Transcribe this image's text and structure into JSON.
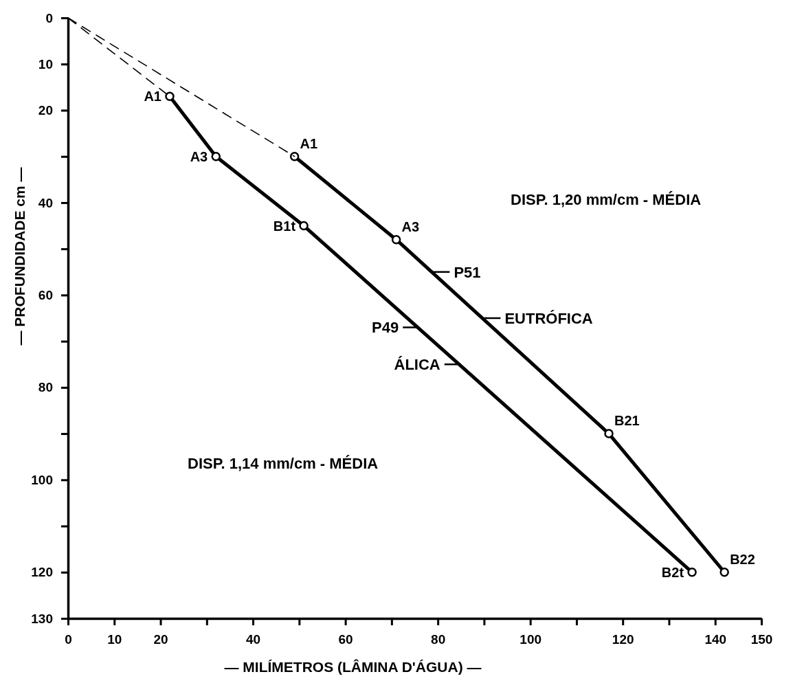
{
  "chart_data": {
    "type": "line",
    "xlabel": "— MILÍMETROS (LÂMINA D'ÁGUA) —",
    "ylabel": "— PROFUNDIDADE cm —",
    "xlim": [
      0,
      150
    ],
    "xticks": [
      0,
      10,
      20,
      {
        "value": 30,
        "label": null
      },
      40,
      {
        "value": 50,
        "label": null
      },
      60,
      {
        "value": 70,
        "label": null
      },
      80,
      {
        "value": 90,
        "label": null
      },
      100,
      {
        "value": 110,
        "label": null
      },
      120,
      {
        "value": 130,
        "label": null
      },
      140,
      150
    ],
    "ylim": [
      130,
      0
    ],
    "yticks": [
      0,
      10,
      20,
      {
        "value": 30,
        "label": null
      },
      40,
      {
        "value": 50,
        "label": null
      },
      60,
      {
        "value": 70,
        "label": null
      },
      80,
      {
        "value": 90,
        "label": null
      },
      100,
      {
        "value": 110,
        "label": null
      },
      120,
      130
    ],
    "grid": false,
    "series": [
      {
        "color": "#000000",
        "x": [
          22,
          32,
          51,
          135
        ],
        "values": [
          17,
          30,
          45,
          120
        ],
        "marker": "circle",
        "line_style": "solid"
      },
      {
        "color": "#000000",
        "x": [
          49,
          71,
          117,
          142
        ],
        "values": [
          30,
          48,
          90,
          120
        ],
        "marker": "circle",
        "line_style": "solid"
      },
      {
        "color": "#000000",
        "x": [
          0,
          22
        ],
        "values": [
          0,
          17
        ],
        "marker": "none",
        "line_style": "dashed"
      },
      {
        "color": "#000000",
        "x": [
          0,
          49
        ],
        "values": [
          0,
          30
        ],
        "marker": "none",
        "line_style": "dashed"
      }
    ],
    "annotations": [
      {
        "text": "A1",
        "x": 22,
        "y": 17
      },
      {
        "text": "A3",
        "x": 32,
        "y": 30
      },
      {
        "text": "B1t",
        "x": 51,
        "y": 45
      },
      {
        "text": "B2t",
        "x": 135,
        "y": 120
      },
      {
        "text": "A1",
        "x": 49,
        "y": 30
      },
      {
        "text": "A3",
        "x": 71,
        "y": 48
      },
      {
        "text": "B21",
        "x": 117,
        "y": 90
      },
      {
        "text": "B22",
        "x": 142,
        "y": 120
      },
      {
        "text": "P49",
        "x": 76,
        "y": 67
      },
      {
        "text": "ÁLICA",
        "x": 85,
        "y": 75
      },
      {
        "text": "P51",
        "x": 79,
        "y": 55
      },
      {
        "text": "EUTRÓFICA",
        "x": 90,
        "y": 65
      },
      "DISP. 1,20 mm/cm - MÉDIA",
      "DISP. 1,14 mm/cm - MÉDIA"
    ]
  }
}
